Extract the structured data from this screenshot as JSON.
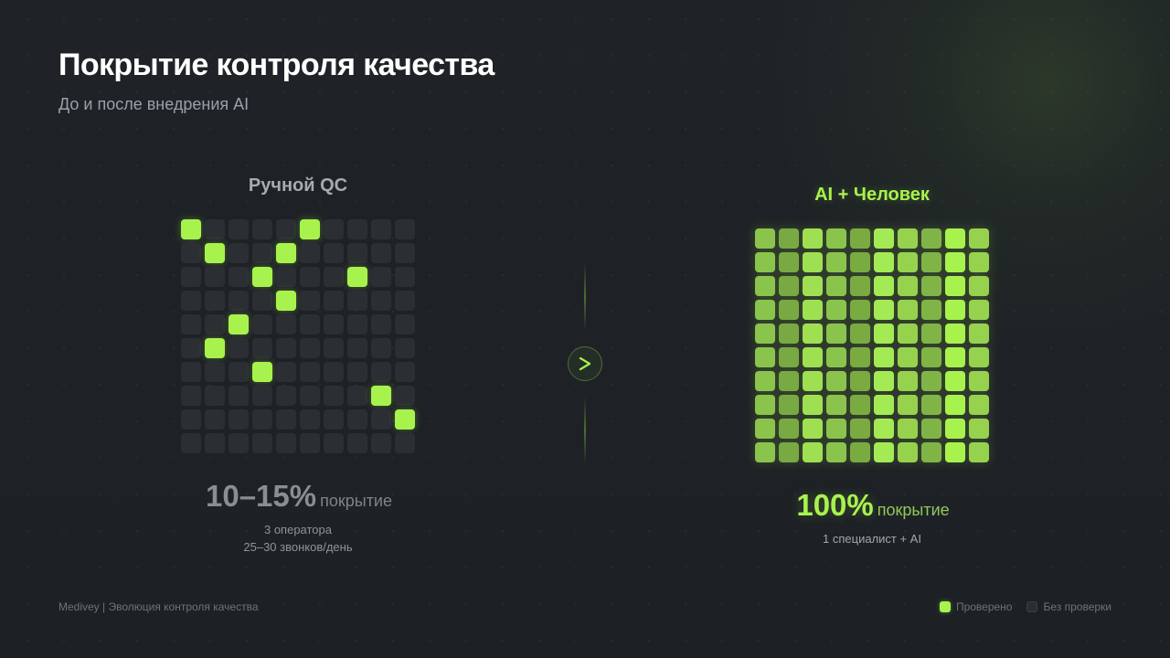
{
  "header": {
    "title": "Покрытие контроля качества",
    "subtitle": "До и после внедрения AI"
  },
  "colors": {
    "background": "#1e2226",
    "accent": "#a8f24e",
    "cell_empty": "#2b2f33",
    "muted_text": "#8a8e92"
  },
  "left_panel": {
    "title": "Ручной QC",
    "grid": {
      "rows": 10,
      "cols": 10,
      "checked_cells": [
        [
          0,
          0
        ],
        [
          0,
          5
        ],
        [
          1,
          1
        ],
        [
          1,
          4
        ],
        [
          2,
          3
        ],
        [
          2,
          7
        ],
        [
          3,
          4
        ],
        [
          4,
          2
        ],
        [
          5,
          1
        ],
        [
          6,
          3
        ],
        [
          7,
          8
        ],
        [
          8,
          9
        ]
      ]
    },
    "stat_value": "10–15%",
    "stat_unit": "покрытие",
    "note_line1": "3 оператора",
    "note_line2": "25–30 звонков/день"
  },
  "divider": {
    "icon": "chevron-right-icon"
  },
  "right_panel": {
    "title": "AI + Человек",
    "grid": {
      "rows": 10,
      "cols": 10,
      "column_shades": [
        "#8bc44c",
        "#78a942",
        "#9fe052",
        "#8bc44c",
        "#79ab41",
        "#a4ea54",
        "#96d24e",
        "#80b446",
        "#a8f24e",
        "#96d24e"
      ]
    },
    "stat_value": "100%",
    "stat_unit": "покрытие",
    "note_line1": "1 специалист + AI"
  },
  "footer": {
    "text": "Medivey | Эволюция контроля качества"
  },
  "legend": {
    "items": [
      {
        "label": "Проверено",
        "state": "checked"
      },
      {
        "label": "Без проверки",
        "state": "unchecked"
      }
    ]
  }
}
